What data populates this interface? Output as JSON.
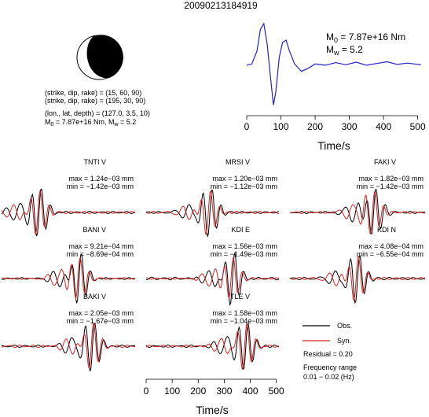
{
  "header": {
    "event_id": "20090213184919"
  },
  "mechanism": {
    "line1": "(strike, dip, rake) = (15, 60, 90)",
    "line2": "(strike, dip, rake) = (195, 30, 90)",
    "line3": "(lon., lat, depth) = (127.0, 3.5, 10)",
    "line4a": "M",
    "line4b": "0",
    "line4c": " = 7.87e+16 Nm, M",
    "line4d": "w",
    "line4e": " = 5.2"
  },
  "stf_annotation": {
    "m0_label": "M",
    "m0_sub": "0",
    "m0_value": " = 7.87e+16 Nm",
    "mw_label": "M",
    "mw_sub": "w",
    "mw_value": " = 5.2"
  },
  "legend": {
    "obs": "Obs.",
    "syn": "Syn.",
    "residual": "Residual = 0.20",
    "freq_title": "Frequency range",
    "freq_range": "0.01 − 0.02 (Hz)"
  },
  "colors": {
    "stf": "#2222cc",
    "obs": "#000000",
    "syn": "#dd2222"
  },
  "chart_data": [
    {
      "type": "line",
      "name_role": "source-time-function",
      "xlabel": "Time/s",
      "x_ticks": [
        0,
        100,
        200,
        300,
        400,
        500
      ],
      "xlim": [
        0,
        510
      ],
      "points": [
        [
          0,
          0.02
        ],
        [
          15,
          0.05
        ],
        [
          30,
          0.35
        ],
        [
          40,
          0.85
        ],
        [
          50,
          0.98
        ],
        [
          60,
          0.5
        ],
        [
          70,
          -0.3
        ],
        [
          78,
          -0.9
        ],
        [
          85,
          -0.6
        ],
        [
          95,
          0.2
        ],
        [
          105,
          0.55
        ],
        [
          115,
          0.6
        ],
        [
          125,
          0.35
        ],
        [
          140,
          0.05
        ],
        [
          160,
          -0.12
        ],
        [
          180,
          -0.05
        ],
        [
          200,
          0.05
        ],
        [
          230,
          0.02
        ],
        [
          260,
          0.08
        ],
        [
          290,
          0.03
        ],
        [
          320,
          0.09
        ],
        [
          350,
          0.02
        ],
        [
          380,
          0.06
        ],
        [
          410,
          0.1
        ],
        [
          440,
          0.04
        ],
        [
          470,
          0.07
        ],
        [
          510,
          0.03
        ]
      ]
    },
    {
      "type": "line",
      "name_role": "waveform-panels",
      "xlabel": "Time/s",
      "x_ticks": [
        0,
        100,
        200,
        300,
        400,
        500
      ],
      "xlim": [
        0,
        510
      ],
      "panels": [
        {
          "station": "TNTI V",
          "max": "max = 1.24e−03 mm",
          "min": "min = −1.42e−03 mm",
          "peak": 0.28,
          "shift": 0.04,
          "seed": 1
        },
        {
          "station": "MRSI V",
          "max": "max = 1.20e−03 mm",
          "min": "min = −1.12e−03 mm",
          "peak": 0.48,
          "shift": 0.06,
          "seed": 2
        },
        {
          "station": "FAKI V",
          "max": "max = 1.82e−03 mm",
          "min": "min = −1.42e−03 mm",
          "peak": 0.62,
          "shift": 0.05,
          "seed": 3
        },
        {
          "station": "BANI V",
          "max": "max = 9.21e−04 mm",
          "min": "min = −8.69e−04 mm",
          "peak": 0.58,
          "shift": 0.04,
          "seed": 4
        },
        {
          "station": "KDI E",
          "max": "max = 1.56e−03 mm",
          "min": "min = −1.49e−03 mm",
          "peak": 0.65,
          "shift": 0.05,
          "seed": 5
        },
        {
          "station": "KDI N",
          "max": "max = 4.08e−04 mm",
          "min": "min = −6.55e−04 mm",
          "peak": 0.5,
          "shift": 0.05,
          "seed": 6
        },
        {
          "station": "BAKI V",
          "max": "max = 2.05e−03 mm",
          "min": "min = −1.67e−03 mm",
          "peak": 0.68,
          "shift": 0.04,
          "seed": 7
        },
        {
          "station": "TLE V",
          "max": "max = 1.58e−03 mm",
          "min": "min = −1.04e−03 mm",
          "peak": 0.75,
          "shift": 0.04,
          "seed": 8
        }
      ]
    }
  ]
}
